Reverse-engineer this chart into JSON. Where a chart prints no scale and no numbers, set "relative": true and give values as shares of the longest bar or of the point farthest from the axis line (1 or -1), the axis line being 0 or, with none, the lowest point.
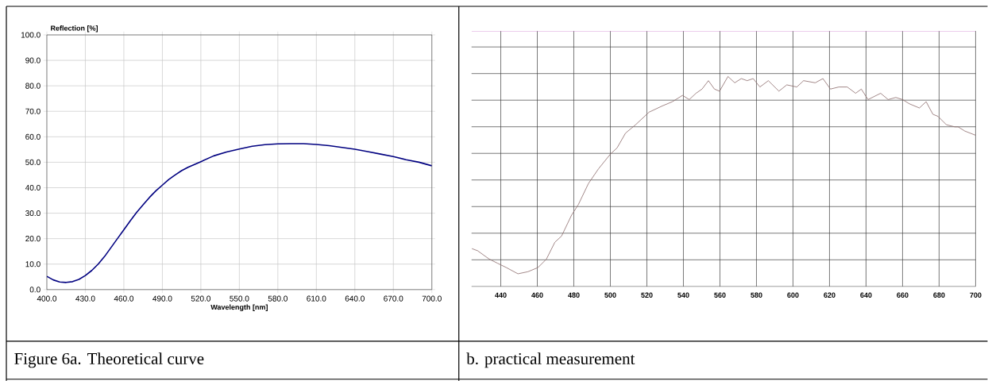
{
  "chart_data": [
    {
      "type": "line",
      "title": "Figure 6a. Theoretical curve",
      "xlabel": "Wavelength [nm]",
      "ylabel": "Reflection [%]",
      "grid": true,
      "xlim": [
        400,
        700
      ],
      "ylim": [
        0,
        100
      ],
      "xticks": [
        {
          "value": 400,
          "label": "400.0"
        },
        {
          "value": 430,
          "label": "430.0"
        },
        {
          "value": 460,
          "label": "460.0"
        },
        {
          "value": 490,
          "label": "490.0"
        },
        {
          "value": 520,
          "label": "520.0"
        },
        {
          "value": 550,
          "label": "550.0"
        },
        {
          "value": 580,
          "label": "580.0"
        },
        {
          "value": 610,
          "label": "610.0"
        },
        {
          "value": 640,
          "label": "640.0"
        },
        {
          "value": 670,
          "label": "670.0"
        },
        {
          "value": 700,
          "label": "700.0"
        }
      ],
      "yticks": [
        {
          "value": 0,
          "label": "0.0"
        },
        {
          "value": 10,
          "label": "10.0"
        },
        {
          "value": 20,
          "label": "20.0"
        },
        {
          "value": 30,
          "label": "30.0"
        },
        {
          "value": 40,
          "label": "40.0"
        },
        {
          "value": 50,
          "label": "50.0"
        },
        {
          "value": 60,
          "label": "60.0"
        },
        {
          "value": 70,
          "label": "70.0"
        },
        {
          "value": 80,
          "label": "80.0"
        },
        {
          "value": 90,
          "label": "90.0"
        },
        {
          "value": 100,
          "label": "100.0"
        }
      ],
      "x": [
        400,
        405,
        410,
        415,
        420,
        425,
        430,
        435,
        440,
        445,
        450,
        455,
        460,
        465,
        470,
        475,
        480,
        485,
        490,
        495,
        500,
        505,
        510,
        520,
        530,
        540,
        550,
        560,
        570,
        580,
        590,
        600,
        610,
        620,
        630,
        640,
        650,
        660,
        670,
        680,
        690,
        700
      ],
      "series": [
        {
          "color": "#000080",
          "values": [
            5.2,
            3.8,
            3.0,
            2.8,
            3.1,
            4.0,
            5.5,
            7.5,
            10.0,
            13.0,
            16.5,
            20.0,
            23.5,
            27.0,
            30.3,
            33.3,
            36.2,
            38.8,
            41.0,
            43.2,
            45.0,
            46.7,
            48.0,
            50.2,
            52.5,
            54.0,
            55.2,
            56.3,
            56.9,
            57.2,
            57.3,
            57.3,
            57.0,
            56.5,
            55.8,
            55.1,
            54.2,
            53.2,
            52.2,
            51.0,
            50.0,
            48.6
          ]
        }
      ]
    },
    {
      "type": "line",
      "title": "b. practical measurement",
      "relative": true,
      "grid": true,
      "xlim": [
        424,
        700
      ],
      "xticks": [
        440,
        460,
        480,
        500,
        520,
        540,
        560,
        580,
        600,
        620,
        640,
        660,
        680,
        700
      ],
      "x": [
        424.2,
        427.3,
        433.7,
        438.3,
        443,
        449.4,
        454.9,
        460.4,
        465,
        469.6,
        473.3,
        478.8,
        482.5,
        488,
        493.5,
        500,
        503.7,
        508.3,
        513.8,
        521.2,
        528.5,
        534,
        539.5,
        543.2,
        546.9,
        550.2,
        553.7,
        557,
        559.8,
        564.4,
        568.1,
        571.7,
        574.9,
        578.2,
        581.9,
        586.5,
        592.3,
        596.6,
        602.1,
        605.8,
        612.2,
        616.4,
        620.5,
        625.1,
        629.7,
        634.3,
        637.4,
        641.1,
        648,
        652.1,
        656.3,
        660,
        663.7,
        669.2,
        672.9,
        676.6,
        679.4,
        684,
        688.6,
        690.4,
        694.1,
        700
      ],
      "series": [
        {
          "color": "#8b6b6b",
          "values": [
            0.18,
            0.17,
            0.13,
            0.11,
            0.09,
            0.06,
            0.07,
            0.09,
            0.13,
            0.21,
            0.24,
            0.34,
            0.39,
            0.49,
            0.56,
            0.63,
            0.66,
            0.73,
            0.77,
            0.83,
            0.86,
            0.88,
            0.91,
            0.89,
            0.92,
            0.94,
            0.98,
            0.94,
            0.93,
            1,
            0.97,
            0.99,
            0.98,
            0.99,
            0.95,
            0.98,
            0.93,
            0.96,
            0.95,
            0.98,
            0.97,
            0.99,
            0.94,
            0.95,
            0.95,
            0.92,
            0.94,
            0.89,
            0.92,
            0.89,
            0.9,
            0.89,
            0.87,
            0.85,
            0.88,
            0.82,
            0.81,
            0.77,
            0.76,
            0.76,
            0.74,
            0.72
          ]
        }
      ]
    }
  ]
}
